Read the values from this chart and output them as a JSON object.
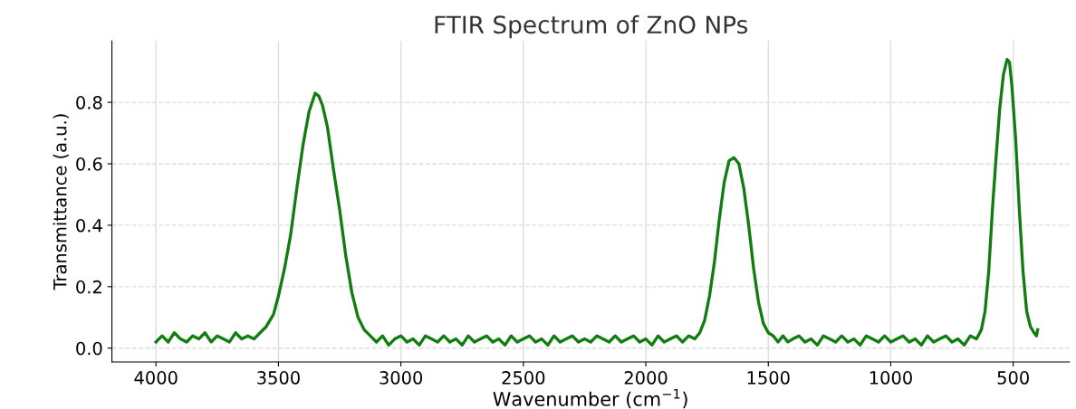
{
  "chart_data": {
    "type": "line",
    "title": "FTIR Spectrum of ZnO NPs",
    "xlabel": "Wavenumber (cm$^{−1}$)",
    "ylabel": "Transmittance (a.u.)",
    "xlim": [
      4180,
      270
    ],
    "xticks": [
      4000,
      3500,
      3000,
      2500,
      2000,
      1500,
      1000,
      500
    ],
    "ylim": [
      -0.045,
      1.0
    ],
    "yticks": [
      {
        "value": 0,
        "label": "0.0"
      },
      {
        "value": 0.2,
        "label": "0.2"
      },
      {
        "value": 0.4,
        "label": "0.4"
      },
      {
        "value": 0.6,
        "label": "0.6"
      },
      {
        "value": 0.8,
        "label": "0.8"
      }
    ],
    "grid": true,
    "marker": "none",
    "line_style": "solid",
    "series": [
      {
        "color": "#117d11",
        "x": [
          4000,
          3975,
          3950,
          3925,
          3900,
          3875,
          3850,
          3825,
          3800,
          3775,
          3750,
          3725,
          3700,
          3675,
          3650,
          3625,
          3600,
          3575,
          3550,
          3520,
          3500,
          3475,
          3450,
          3425,
          3400,
          3375,
          3350,
          3335,
          3320,
          3300,
          3275,
          3250,
          3225,
          3200,
          3175,
          3150,
          3125,
          3100,
          3075,
          3050,
          3025,
          3000,
          2975,
          2950,
          2925,
          2900,
          2875,
          2850,
          2825,
          2800,
          2775,
          2750,
          2725,
          2700,
          2675,
          2650,
          2625,
          2600,
          2575,
          2550,
          2525,
          2500,
          2475,
          2450,
          2425,
          2400,
          2375,
          2350,
          2325,
          2300,
          2275,
          2250,
          2225,
          2200,
          2175,
          2150,
          2125,
          2100,
          2075,
          2050,
          2025,
          2000,
          1975,
          1950,
          1925,
          1900,
          1875,
          1850,
          1825,
          1800,
          1780,
          1760,
          1740,
          1720,
          1700,
          1680,
          1660,
          1640,
          1620,
          1600,
          1580,
          1560,
          1540,
          1520,
          1500,
          1480,
          1460,
          1440,
          1420,
          1400,
          1375,
          1350,
          1325,
          1300,
          1275,
          1250,
          1225,
          1200,
          1175,
          1150,
          1125,
          1100,
          1075,
          1050,
          1025,
          1000,
          975,
          950,
          925,
          900,
          875,
          850,
          825,
          800,
          775,
          750,
          725,
          700,
          675,
          650,
          630,
          615,
          600,
          585,
          570,
          555,
          540,
          525,
          515,
          505,
          490,
          475,
          460,
          445,
          430,
          415,
          405,
          400
        ],
        "values": [
          0.02,
          0.04,
          0.02,
          0.05,
          0.03,
          0.02,
          0.04,
          0.03,
          0.05,
          0.02,
          0.04,
          0.03,
          0.02,
          0.05,
          0.03,
          0.04,
          0.03,
          0.05,
          0.07,
          0.11,
          0.17,
          0.26,
          0.37,
          0.52,
          0.66,
          0.77,
          0.83,
          0.82,
          0.79,
          0.72,
          0.58,
          0.45,
          0.3,
          0.18,
          0.1,
          0.06,
          0.04,
          0.02,
          0.04,
          0.01,
          0.03,
          0.04,
          0.02,
          0.03,
          0.01,
          0.04,
          0.03,
          0.02,
          0.04,
          0.02,
          0.03,
          0.01,
          0.04,
          0.02,
          0.03,
          0.04,
          0.02,
          0.03,
          0.01,
          0.04,
          0.02,
          0.03,
          0.04,
          0.02,
          0.03,
          0.01,
          0.04,
          0.02,
          0.03,
          0.04,
          0.02,
          0.03,
          0.02,
          0.04,
          0.03,
          0.02,
          0.04,
          0.02,
          0.03,
          0.04,
          0.02,
          0.03,
          0.01,
          0.04,
          0.02,
          0.03,
          0.04,
          0.02,
          0.04,
          0.03,
          0.05,
          0.09,
          0.17,
          0.28,
          0.42,
          0.54,
          0.61,
          0.62,
          0.6,
          0.52,
          0.4,
          0.26,
          0.15,
          0.08,
          0.05,
          0.04,
          0.02,
          0.04,
          0.02,
          0.03,
          0.04,
          0.02,
          0.03,
          0.01,
          0.04,
          0.03,
          0.02,
          0.04,
          0.02,
          0.03,
          0.01,
          0.04,
          0.03,
          0.02,
          0.04,
          0.02,
          0.03,
          0.04,
          0.02,
          0.03,
          0.01,
          0.04,
          0.02,
          0.03,
          0.04,
          0.02,
          0.03,
          0.01,
          0.04,
          0.03,
          0.06,
          0.12,
          0.25,
          0.45,
          0.62,
          0.78,
          0.89,
          0.94,
          0.93,
          0.85,
          0.68,
          0.45,
          0.25,
          0.12,
          0.07,
          0.05,
          0.04,
          0.06
        ]
      }
    ]
  }
}
